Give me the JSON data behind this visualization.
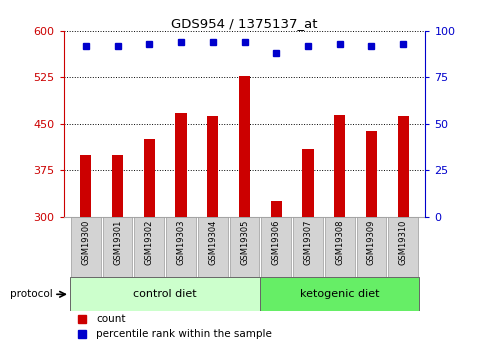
{
  "title": "GDS954 / 1375137_at",
  "samples": [
    "GSM19300",
    "GSM19301",
    "GSM19302",
    "GSM19303",
    "GSM19304",
    "GSM19305",
    "GSM19306",
    "GSM19307",
    "GSM19308",
    "GSM19309",
    "GSM19310"
  ],
  "counts": [
    400,
    400,
    425,
    468,
    462,
    527,
    325,
    410,
    465,
    438,
    463
  ],
  "percentile_ranks": [
    92,
    92,
    93,
    94,
    94,
    94,
    88,
    92,
    93,
    92,
    93
  ],
  "bar_color": "#cc0000",
  "dot_color": "#0000cc",
  "ylim_left": [
    300,
    600
  ],
  "yticks_left": [
    300,
    375,
    450,
    525,
    600
  ],
  "ylim_right": [
    0,
    100
  ],
  "yticks_right": [
    0,
    25,
    50,
    75,
    100
  ],
  "left_axis_color": "#cc0000",
  "right_axis_color": "#0000cc",
  "grid_color": "#000000",
  "control_diet_indices": [
    0,
    1,
    2,
    3,
    4,
    5
  ],
  "ketogenic_diet_indices": [
    6,
    7,
    8,
    9,
    10
  ],
  "control_label": "control diet",
  "ketogenic_label": "ketogenic diet",
  "protocol_label": "protocol",
  "legend_count_label": "count",
  "legend_percentile_label": "percentile rank within the sample",
  "bg_plot": "#ffffff",
  "bg_control": "#ccffcc",
  "bg_ketogenic": "#66ee66",
  "xticklabel_bg": "#d3d3d3",
  "bar_width": 0.35
}
